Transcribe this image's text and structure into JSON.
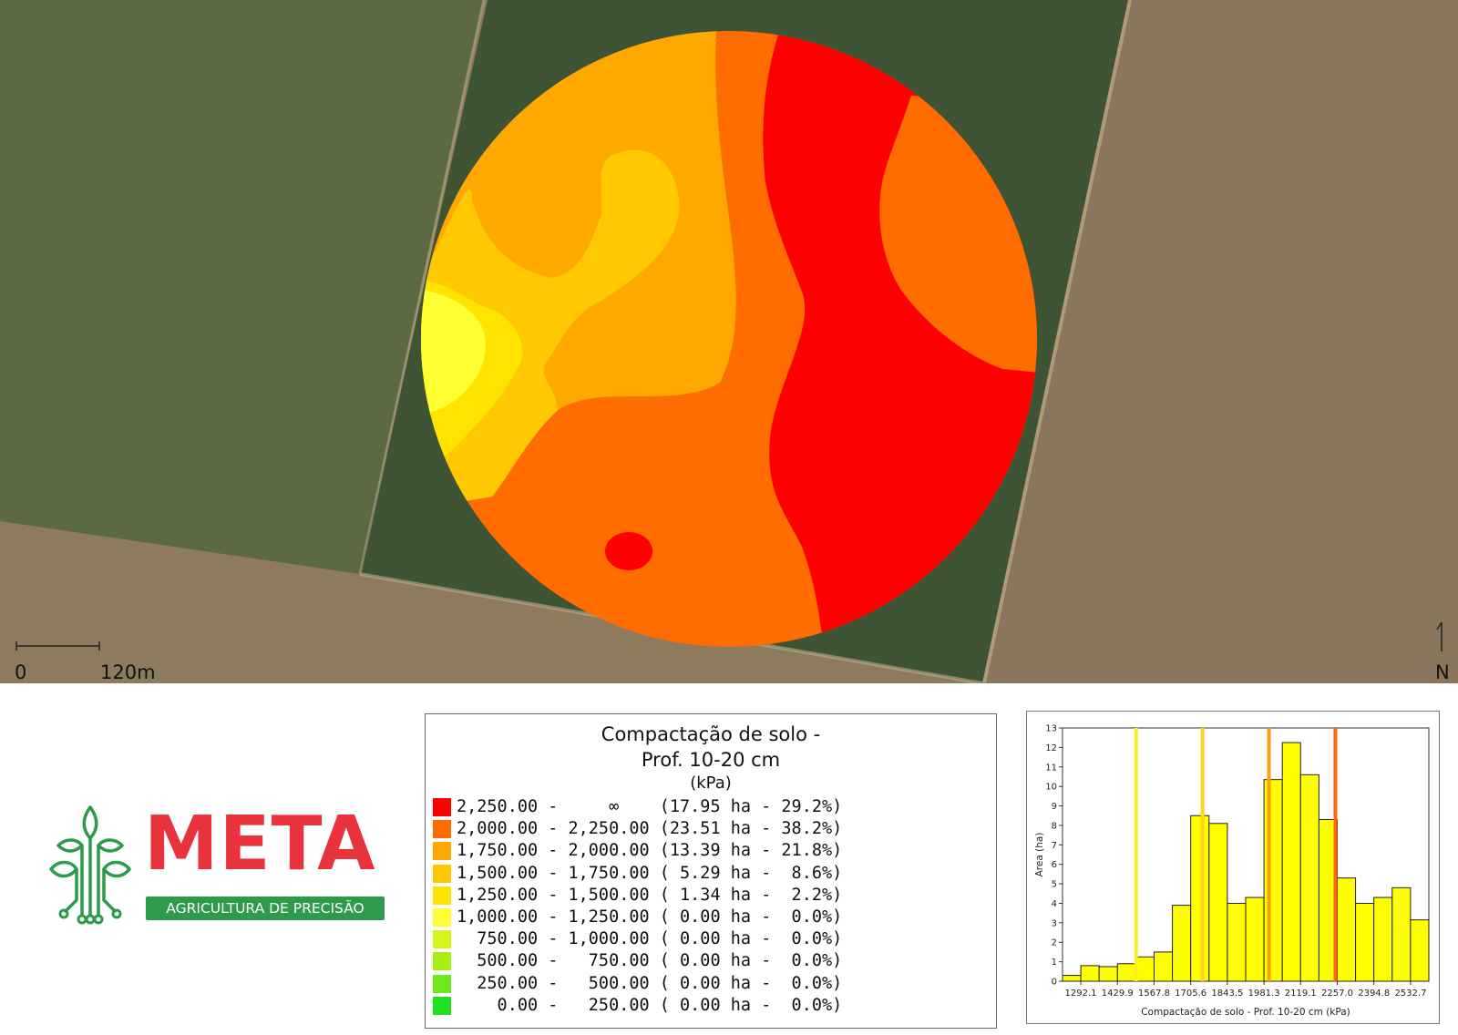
{
  "map": {
    "scale_start": "0",
    "scale_end": "120m",
    "north_label": "N",
    "zone_colors": {
      "red": "#ff0000",
      "dark_orange": "#ff6d00",
      "orange": "#ffa800",
      "gold": "#ffc800",
      "yellow": "#ffe400",
      "light_yellow": "#ffff33"
    },
    "background_colors": {
      "field_left": "#5b6a40",
      "field_center": "#3e5434",
      "field_right": "#8a765d",
      "field_bottom": "#8e7a5d"
    }
  },
  "logo": {
    "title": "META",
    "subtitle": "AGRICULTURA DE PRECISÃO",
    "icon": "plant-circuit-icon",
    "title_color": "#e8323c",
    "accent_color": "#2e9a4c"
  },
  "legend": {
    "title_line1": "Compactação de solo -",
    "title_line2": "Prof. 10-20 cm",
    "unit": "(kPa)",
    "rows": [
      {
        "color": "#ff0000",
        "text": "2,250.00 -     ∞    (17.95 ha - 29.2%)"
      },
      {
        "color": "#ff6d00",
        "text": "2,000.00 - 2,250.00 (23.51 ha - 38.2%)"
      },
      {
        "color": "#ffa800",
        "text": "1,750.00 - 2,000.00 (13.39 ha - 21.8%)"
      },
      {
        "color": "#ffc800",
        "text": "1,500.00 - 1,750.00 ( 5.29 ha -  8.6%)"
      },
      {
        "color": "#ffe400",
        "text": "1,250.00 - 1,500.00 ( 1.34 ha -  2.2%)"
      },
      {
        "color": "#ffff33",
        "text": "1,000.00 - 1,250.00 ( 0.00 ha -  0.0%)"
      },
      {
        "color": "#d6f51a",
        "text": "  750.00 - 1,000.00 ( 0.00 ha -  0.0%)"
      },
      {
        "color": "#a8ef16",
        "text": "  500.00 -   750.00 ( 0.00 ha -  0.0%)"
      },
      {
        "color": "#6ee81f",
        "text": "  250.00 -   500.00 ( 0.00 ha -  0.0%)"
      },
      {
        "color": "#22e01f",
        "text": "    0.00 -   250.00 ( 0.00 ha -  0.0%)"
      }
    ]
  },
  "chart_data": {
    "type": "bar",
    "xlabel": "Compactação de solo - Prof. 10-20 cm (kPa)",
    "ylabel": "Area (ha)",
    "ylim": [
      0,
      13
    ],
    "yticks": [
      0,
      1,
      2,
      3,
      4,
      5,
      6,
      7,
      8,
      9,
      10,
      11,
      12,
      13
    ],
    "xlim": [
      1223.35,
      2601.45
    ],
    "xticks": [
      1292.1,
      1429.9,
      1567.8,
      1705.6,
      1843.5,
      1981.3,
      2119.1,
      2257.0,
      2394.8,
      2532.7
    ],
    "xtick_labels": [
      "1292.1",
      "1429.9",
      "1567.8",
      "1705.6",
      "1843.5",
      "1981.3",
      "2119.1",
      "2257.0",
      "2394.8",
      "2532.7"
    ],
    "bin_width": 68.9,
    "bin_starts": [
      1223.35,
      1292.25,
      1361.15,
      1430.05,
      1498.95,
      1567.85,
      1636.75,
      1705.65,
      1774.55,
      1843.45,
      1912.35,
      1981.25,
      2050.15,
      2119.05,
      2187.95,
      2256.85,
      2325.75,
      2394.65,
      2463.55,
      2532.45
    ],
    "values": [
      0.3,
      0.8,
      0.75,
      0.9,
      1.25,
      1.5,
      3.9,
      8.5,
      8.1,
      4.0,
      4.3,
      10.35,
      12.25,
      10.6,
      8.3,
      5.3,
      4.0,
      4.3,
      4.8,
      3.15
    ],
    "bar_color": "#ffff00",
    "class_breaks": [
      {
        "value": 1500,
        "color": "#ffee22"
      },
      {
        "value": 1750,
        "color": "#ffd21c"
      },
      {
        "value": 2000,
        "color": "#ff9f10"
      },
      {
        "value": 2250,
        "color": "#ff6a00"
      }
    ],
    "grid": false
  }
}
